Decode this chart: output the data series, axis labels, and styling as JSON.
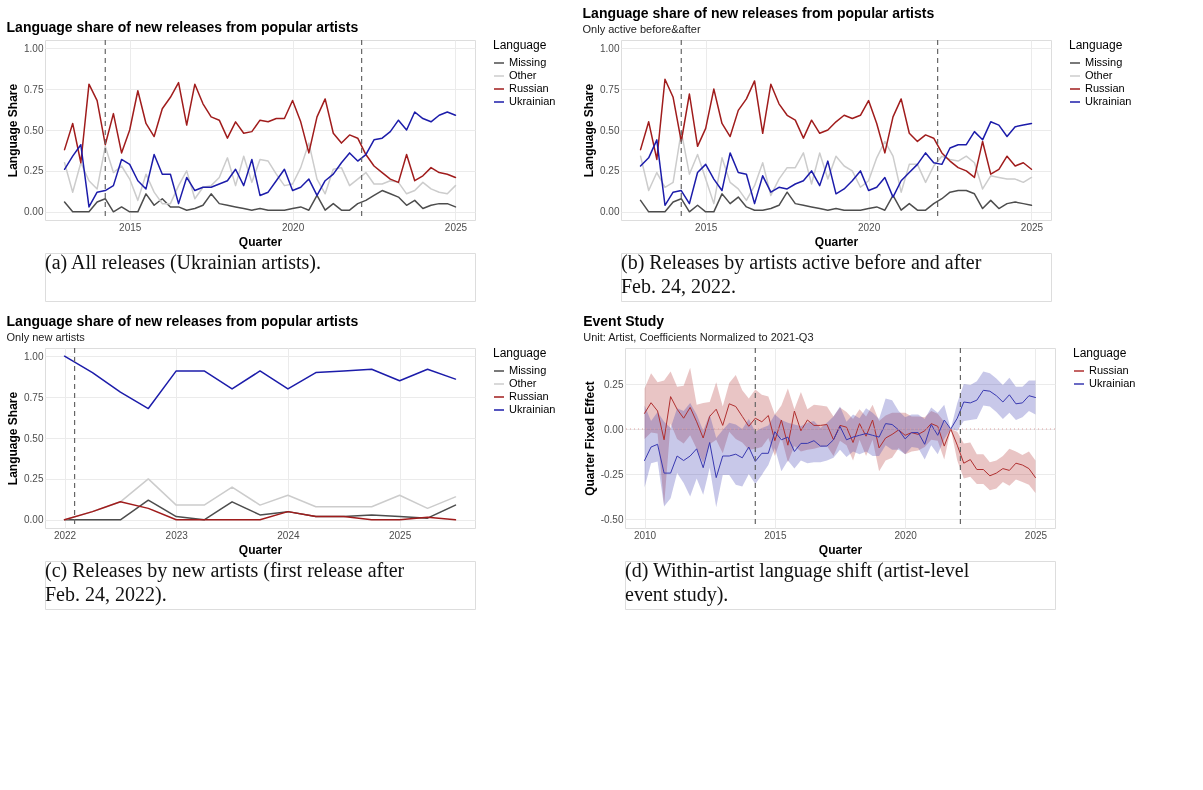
{
  "chart_data": [
    {
      "type": "line",
      "title": "Language share of new releases from popular artists",
      "xlabel": "Quarter",
      "ylabel": "Language Share",
      "legend_title": "Language",
      "legend": "right",
      "grid": true,
      "annotations": [
        "(a) All releases (Ukrainian artists)."
      ],
      "x": [
        2013,
        2013.25,
        2013.5,
        2013.75,
        2014,
        2014.25,
        2014.5,
        2014.75,
        2015,
        2015.25,
        2015.5,
        2015.75,
        2016,
        2016.25,
        2016.5,
        2016.75,
        2017,
        2017.25,
        2017.5,
        2017.75,
        2018,
        2018.25,
        2018.5,
        2018.75,
        2019,
        2019.25,
        2019.5,
        2019.75,
        2020,
        2020.25,
        2020.5,
        2020.75,
        2021,
        2021.25,
        2021.5,
        2021.75,
        2022,
        2022.25,
        2022.5,
        2022.75,
        2023,
        2023.25,
        2023.5,
        2023.75,
        2024,
        2024.25,
        2024.5,
        2024.75,
        2025
      ],
      "xlim": [
        2012.4,
        2025.6
      ],
      "xticks": [
        2015,
        2020,
        2025
      ],
      "ylim": [
        -0.05,
        1.05
      ],
      "yticks": [
        {
          "value": 0,
          "label": "0.00"
        },
        {
          "value": 0.25,
          "label": "0.25"
        },
        {
          "value": 0.5,
          "label": "0.50"
        },
        {
          "value": 0.75,
          "label": "0.75"
        },
        {
          "value": 1,
          "label": "1.00"
        }
      ],
      "ref_lines": [
        {
          "axis": "x",
          "value": 2014.25,
          "color": "#666666",
          "line_style": "dashed"
        },
        {
          "axis": "x",
          "value": 2022.12,
          "color": "#666666",
          "line_style": "dashed"
        }
      ],
      "series": [
        {
          "name": "Missing",
          "color": "#4d4d4d",
          "values": [
            0.06,
            0,
            0,
            0,
            0.06,
            0.08,
            0,
            0.03,
            0,
            0,
            0.11,
            0.04,
            0.08,
            0.03,
            0.03,
            0.01,
            0.02,
            0.04,
            0.11,
            0.05,
            0.04,
            0.03,
            0.02,
            0.01,
            0.02,
            0.01,
            0.01,
            0.01,
            0.02,
            0.03,
            0.01,
            0.1,
            0.01,
            0.05,
            0.01,
            0.01,
            0.05,
            0.07,
            0.1,
            0.13,
            0.11,
            0.09,
            0.04,
            0.07,
            0.02,
            0.04,
            0.05,
            0.05,
            0.03
          ]
        },
        {
          "name": "Other",
          "color": "#cccccc",
          "values": [
            0.3,
            0.12,
            0.3,
            0.19,
            0.14,
            0.4,
            0.24,
            0.28,
            0.2,
            0.07,
            0.23,
            0.12,
            0.05,
            0.05,
            0.16,
            0.25,
            0.08,
            0.15,
            0.16,
            0.21,
            0.33,
            0.16,
            0.34,
            0.18,
            0.32,
            0.31,
            0.23,
            0.16,
            0.17,
            0.27,
            0.42,
            0.2,
            0.11,
            0.26,
            0.27,
            0.16,
            0.2,
            0.24,
            0.17,
            0.17,
            0.19,
            0.18,
            0.11,
            0.13,
            0.18,
            0.14,
            0.12,
            0.11,
            0.16
          ]
        },
        {
          "name": "Russian",
          "color": "#a01c1c",
          "values": [
            0.38,
            0.54,
            0.3,
            0.78,
            0.68,
            0.41,
            0.6,
            0.36,
            0.5,
            0.74,
            0.54,
            0.46,
            0.63,
            0.7,
            0.79,
            0.53,
            0.78,
            0.66,
            0.58,
            0.56,
            0.45,
            0.55,
            0.48,
            0.49,
            0.56,
            0.55,
            0.57,
            0.57,
            0.68,
            0.55,
            0.36,
            0.58,
            0.69,
            0.48,
            0.42,
            0.47,
            0.45,
            0.35,
            0.28,
            0.24,
            0.2,
            0.18,
            0.35,
            0.19,
            0.22,
            0.27,
            0.24,
            0.23,
            0.21
          ]
        },
        {
          "name": "Ukrainian",
          "color": "#1c1caa",
          "values": [
            0.26,
            0.34,
            0.41,
            0.03,
            0.12,
            0.13,
            0.16,
            0.32,
            0.29,
            0.19,
            0.14,
            0.35,
            0.23,
            0.23,
            0.05,
            0.21,
            0.13,
            0.15,
            0.15,
            0.17,
            0.19,
            0.26,
            0.16,
            0.32,
            0.1,
            0.12,
            0.19,
            0.26,
            0.13,
            0.15,
            0.2,
            0.1,
            0.19,
            0.23,
            0.3,
            0.36,
            0.31,
            0.35,
            0.44,
            0.45,
            0.49,
            0.56,
            0.5,
            0.61,
            0.57,
            0.55,
            0.59,
            0.61,
            0.59
          ]
        }
      ]
    },
    {
      "type": "line",
      "title": "Language share of new releases from popular artists",
      "subtitle": "Only active before&after",
      "xlabel": "Quarter",
      "ylabel": "Language Share",
      "legend_title": "Language",
      "legend": "right",
      "grid": true,
      "annotations": [
        "(b) Releases by artists active before and after Feb. 24, 2022."
      ],
      "x": [
        2013,
        2013.25,
        2013.5,
        2013.75,
        2014,
        2014.25,
        2014.5,
        2014.75,
        2015,
        2015.25,
        2015.5,
        2015.75,
        2016,
        2016.25,
        2016.5,
        2016.75,
        2017,
        2017.25,
        2017.5,
        2017.75,
        2018,
        2018.25,
        2018.5,
        2018.75,
        2019,
        2019.25,
        2019.5,
        2019.75,
        2020,
        2020.25,
        2020.5,
        2020.75,
        2021,
        2021.25,
        2021.5,
        2021.75,
        2022,
        2022.25,
        2022.5,
        2022.75,
        2023,
        2023.25,
        2023.5,
        2023.75,
        2024,
        2024.25,
        2024.5,
        2024.75,
        2025
      ],
      "xlim": [
        2012.4,
        2025.6
      ],
      "xticks": [
        2015,
        2020,
        2025
      ],
      "ylim": [
        -0.05,
        1.05
      ],
      "yticks": [
        {
          "value": 0,
          "label": "0.00"
        },
        {
          "value": 0.25,
          "label": "0.25"
        },
        {
          "value": 0.5,
          "label": "0.50"
        },
        {
          "value": 0.75,
          "label": "0.75"
        },
        {
          "value": 1,
          "label": "1.00"
        }
      ],
      "ref_lines": [
        {
          "axis": "x",
          "value": 2014.25,
          "color": "#666666",
          "line_style": "dashed"
        },
        {
          "axis": "x",
          "value": 2022.12,
          "color": "#666666",
          "line_style": "dashed"
        }
      ],
      "series": [
        {
          "name": "Missing",
          "color": "#4d4d4d",
          "values": [
            0.07,
            0,
            0,
            0,
            0.06,
            0.08,
            0,
            0.04,
            0,
            0,
            0.11,
            0.05,
            0.09,
            0.03,
            0.01,
            0.01,
            0.02,
            0.04,
            0.12,
            0.05,
            0.04,
            0.03,
            0.02,
            0.01,
            0.02,
            0.01,
            0.01,
            0.01,
            0.02,
            0.03,
            0.01,
            0.1,
            0.01,
            0.05,
            0.01,
            0.01,
            0.05,
            0.08,
            0.12,
            0.13,
            0.13,
            0.11,
            0.02,
            0.07,
            0.02,
            0.05,
            0.06,
            0.05,
            0.04
          ]
        },
        {
          "name": "Other",
          "color": "#cccccc",
          "values": [
            0.34,
            0.13,
            0.24,
            0.15,
            0.18,
            0.49,
            0.23,
            0.35,
            0.2,
            0.05,
            0.33,
            0.18,
            0.14,
            0.07,
            0.16,
            0.3,
            0.1,
            0.2,
            0.27,
            0.27,
            0.36,
            0.17,
            0.36,
            0.2,
            0.34,
            0.28,
            0.25,
            0.15,
            0.19,
            0.33,
            0.43,
            0.34,
            0.12,
            0.29,
            0.29,
            0.18,
            0.28,
            0.34,
            0.32,
            0.31,
            0.34,
            0.3,
            0.14,
            0.22,
            0.21,
            0.2,
            0.2,
            0.18,
            0.21
          ]
        },
        {
          "name": "Russian",
          "color": "#a01c1c",
          "values": [
            0.38,
            0.55,
            0.32,
            0.81,
            0.7,
            0.43,
            0.72,
            0.4,
            0.51,
            0.75,
            0.54,
            0.46,
            0.62,
            0.69,
            0.8,
            0.48,
            0.78,
            0.66,
            0.59,
            0.56,
            0.45,
            0.56,
            0.48,
            0.5,
            0.55,
            0.59,
            0.57,
            0.59,
            0.68,
            0.54,
            0.36,
            0.58,
            0.69,
            0.48,
            0.43,
            0.47,
            0.45,
            0.36,
            0.31,
            0.27,
            0.25,
            0.21,
            0.43,
            0.23,
            0.26,
            0.34,
            0.28,
            0.3,
            0.26
          ]
        },
        {
          "name": "Ukrainian",
          "color": "#1c1caa",
          "values": [
            0.28,
            0.33,
            0.44,
            0.04,
            0.12,
            0.13,
            0.05,
            0.24,
            0.29,
            0.2,
            0.13,
            0.36,
            0.24,
            0.23,
            0.05,
            0.22,
            0.12,
            0.15,
            0.14,
            0.17,
            0.19,
            0.25,
            0.16,
            0.31,
            0.11,
            0.14,
            0.19,
            0.25,
            0.13,
            0.15,
            0.21,
            0.09,
            0.19,
            0.24,
            0.29,
            0.36,
            0.3,
            0.29,
            0.39,
            0.41,
            0.41,
            0.49,
            0.44,
            0.55,
            0.53,
            0.46,
            0.52,
            0.53,
            0.54
          ]
        }
      ]
    },
    {
      "type": "line",
      "title": "Language share of new releases from popular artists",
      "subtitle": "Only new artists",
      "xlabel": "Quarter",
      "ylabel": "Language Share",
      "legend_title": "Language",
      "legend": "right",
      "grid": true,
      "annotations": [
        "(c) Releases by new artists (first release after Feb. 24, 2022)."
      ],
      "x": [
        2022,
        2022.25,
        2022.5,
        2022.75,
        2023,
        2023.25,
        2023.5,
        2023.75,
        2024,
        2024.25,
        2024.5,
        2024.75,
        2025,
        2025.25,
        2025.5
      ],
      "xlim": [
        2021.825,
        2025.675
      ],
      "xticks": [
        2022,
        2023,
        2024,
        2025
      ],
      "ylim": [
        -0.05,
        1.05
      ],
      "yticks": [
        {
          "value": 0,
          "label": "0.00"
        },
        {
          "value": 0.25,
          "label": "0.25"
        },
        {
          "value": 0.5,
          "label": "0.50"
        },
        {
          "value": 0.75,
          "label": "0.75"
        },
        {
          "value": 1,
          "label": "1.00"
        }
      ],
      "ref_lines": [
        {
          "axis": "x",
          "value": 2022.09,
          "color": "#666666",
          "line_style": "dashed"
        }
      ],
      "series": [
        {
          "name": "Missing",
          "color": "#4d4d4d",
          "values": [
            0,
            0,
            0,
            0.12,
            0.02,
            0,
            0.11,
            0.03,
            0.05,
            0.02,
            0.02,
            0.03,
            0.02,
            0.01,
            0.09
          ]
        },
        {
          "name": "Other",
          "color": "#cccccc",
          "values": [
            0,
            0.05,
            0.11,
            0.25,
            0.09,
            0.09,
            0.2,
            0.09,
            0.15,
            0.08,
            0.08,
            0.08,
            0.15,
            0.07,
            0.14
          ]
        },
        {
          "name": "Russian",
          "color": "#a01c1c",
          "values": [
            0,
            0.05,
            0.11,
            0.07,
            0,
            0,
            0,
            0,
            0.05,
            0.02,
            0.02,
            0,
            0,
            0.015,
            0
          ]
        },
        {
          "name": "Ukrainian",
          "color": "#1c1caa",
          "values": [
            1.0,
            0.9,
            0.78,
            0.68,
            0.91,
            0.91,
            0.8,
            0.91,
            0.8,
            0.9,
            0.91,
            0.92,
            0.85,
            0.92,
            0.86
          ]
        }
      ]
    },
    {
      "type": "line",
      "title": "Event Study",
      "subtitle": "Unit: Artist, Coefficients Normalized to 2021-Q3",
      "xlabel": "Quarter",
      "ylabel": "Quarter Fixed Effect",
      "legend_title": "Language",
      "legend": "right",
      "grid": true,
      "annotations": [
        "(d) Within-artist language shift (artist-level event study)."
      ],
      "x": [
        2010,
        2010.25,
        2010.5,
        2010.75,
        2011,
        2011.25,
        2011.5,
        2011.75,
        2012,
        2012.25,
        2012.5,
        2012.75,
        2013,
        2013.25,
        2013.5,
        2013.75,
        2014,
        2014.25,
        2014.5,
        2014.75,
        2015,
        2015.25,
        2015.5,
        2015.75,
        2016,
        2016.25,
        2016.5,
        2016.75,
        2017,
        2017.25,
        2017.5,
        2017.75,
        2018,
        2018.25,
        2018.5,
        2018.75,
        2019,
        2019.25,
        2019.5,
        2019.75,
        2020,
        2020.25,
        2020.5,
        2020.75,
        2021,
        2021.25,
        2021.5,
        2021.75,
        2022,
        2022.25,
        2022.5,
        2022.75,
        2023,
        2023.25,
        2023.5,
        2023.75,
        2024,
        2024.25,
        2024.5,
        2024.75,
        2025
      ],
      "xlim": [
        2009.25,
        2025.75
      ],
      "xticks": [
        2010,
        2015,
        2020,
        2025
      ],
      "ylim": [
        -0.55,
        0.45
      ],
      "yticks": [
        {
          "value": -0.5,
          "label": "-0.50"
        },
        {
          "value": -0.25,
          "label": "-0.25"
        },
        {
          "value": 0,
          "label": "0.00"
        },
        {
          "value": 0.25,
          "label": "0.25"
        }
      ],
      "ref_lines": [
        {
          "axis": "x",
          "value": 2014.25,
          "color": "#666666",
          "line_style": "dashed"
        },
        {
          "axis": "x",
          "value": 2022.12,
          "color": "#666666",
          "line_style": "dashed"
        },
        {
          "axis": "y",
          "value": 0,
          "color": "#e0a0a0",
          "line_style": "dotted"
        }
      ],
      "series": [
        {
          "name": "Russian",
          "color": "#b03030",
          "values": [
            0.087,
            0.146,
            0.1,
            -0.06,
            0.18,
            0.11,
            0.06,
            0.12,
            0.04,
            -0.05,
            0.07,
            0.11,
            0.02,
            0.14,
            0.125,
            0.07,
            0.015,
            0.06,
            0.04,
            0.075,
            -0.065,
            0.05,
            -0.09,
            0.1,
            -0.01,
            0.05,
            0.02,
            0.02,
            0.025,
            -0.06,
            0.02,
            0.01,
            -0.075,
            0.03,
            -0.04,
            0.05,
            -0.105,
            -0.05,
            -0.03,
            -0.005,
            -0.035,
            -0.02,
            -0.03,
            -0.01,
            0.03,
            0.015,
            -0.095,
            0,
            -0.09,
            -0.19,
            -0.17,
            -0.225,
            -0.225,
            -0.26,
            -0.245,
            -0.22,
            -0.23,
            -0.19,
            -0.2,
            -0.22,
            -0.27
          ],
          "upper": [
            0.225,
            0.31,
            0.26,
            0.27,
            0.32,
            0.235,
            0.24,
            0.34,
            0.135,
            0.145,
            0.15,
            0.26,
            0.125,
            0.255,
            0.3,
            0.215,
            0.17,
            0.22,
            0.19,
            0.18,
            0.08,
            0.13,
            0.225,
            0.11,
            0.205,
            0.11,
            0.135,
            0.13,
            0.125,
            0.07,
            0.12,
            0.095,
            0.055,
            0.11,
            0.07,
            0.135,
            0.045,
            0.075,
            0.09,
            0.09,
            0.09,
            0.07,
            0.07,
            0.065,
            0.1,
            0.085,
            0.04,
            0,
            -0.015,
            -0.08,
            -0.075,
            -0.14,
            -0.14,
            -0.185,
            -0.175,
            -0.15,
            -0.11,
            -0.125,
            -0.145,
            -0.125,
            -0.175
          ],
          "lower": [
            -0.055,
            -0.02,
            -0.025,
            -0.425,
            0.03,
            -0.055,
            -0.08,
            -0.035,
            -0.11,
            -0.19,
            -0.085,
            -0.06,
            -0.135,
            -0.015,
            -0.055,
            -0.075,
            -0.115,
            -0.11,
            -0.1,
            -0.05,
            -0.15,
            -0.045,
            -0.185,
            -0.095,
            -0.125,
            -0.115,
            -0.11,
            -0.1,
            -0.095,
            -0.15,
            -0.065,
            -0.09,
            -0.175,
            -0.06,
            -0.15,
            -0.06,
            -0.235,
            -0.175,
            -0.16,
            -0.105,
            -0.14,
            -0.125,
            -0.12,
            -0.1,
            -0.06,
            -0.065,
            -0.17,
            0,
            -0.175,
            -0.275,
            -0.265,
            -0.305,
            -0.305,
            -0.34,
            -0.33,
            -0.295,
            -0.315,
            -0.28,
            -0.295,
            -0.31,
            -0.355
          ]
        },
        {
          "name": "Ukrainian",
          "color": "#3838b0",
          "values": [
            -0.175,
            -0.1,
            -0.085,
            -0.245,
            -0.245,
            -0.15,
            -0.175,
            -0.15,
            -0.11,
            -0.215,
            -0.075,
            -0.27,
            -0.15,
            -0.15,
            -0.14,
            -0.16,
            -0.1,
            -0.18,
            -0.135,
            -0.135,
            -0.015,
            -0.06,
            -0.045,
            -0.125,
            -0.08,
            -0.08,
            -0.065,
            -0.095,
            -0.095,
            -0.06,
            0.015,
            -0.06,
            -0.045,
            -0.035,
            -0.025,
            -0.035,
            -0.045,
            0.03,
            0.025,
            -0.005,
            -0.055,
            -0.02,
            -0.02,
            -0.085,
            0.025,
            -0.035,
            0.05,
            0,
            0.06,
            0.15,
            0.145,
            0.16,
            0.215,
            0.21,
            0.185,
            0.15,
            0.19,
            0.14,
            0.145,
            0.185,
            0.175
          ],
          "upper": [
            0.13,
            0.045,
            0.095,
            0.04,
            0.005,
            0.115,
            0.1,
            0.145,
            0.08,
            -0.01,
            0.08,
            -0.05,
            -0.005,
            0.035,
            0.025,
            0,
            0.055,
            -0.015,
            0.005,
            0.02,
            0.08,
            0.05,
            0.035,
            0.025,
            0.015,
            0.035,
            0.045,
            0.005,
            0.035,
            0.07,
            0.125,
            0.04,
            0.08,
            0.06,
            0.115,
            0.09,
            0.055,
            0.17,
            0.16,
            0.1,
            0.065,
            0.08,
            0.08,
            0.055,
            0.12,
            0.09,
            0.135,
            0,
            0.145,
            0.25,
            0.245,
            0.265,
            0.32,
            0.31,
            0.28,
            0.245,
            0.285,
            0.235,
            0.235,
            0.27,
            0.27
          ],
          "lower": [
            -0.325,
            -0.19,
            -0.18,
            -0.43,
            -0.385,
            -0.245,
            -0.3,
            -0.375,
            -0.275,
            -0.365,
            -0.215,
            -0.435,
            -0.255,
            -0.255,
            -0.31,
            -0.32,
            -0.25,
            -0.305,
            -0.255,
            -0.2,
            -0.105,
            -0.235,
            -0.175,
            -0.22,
            -0.175,
            -0.19,
            -0.185,
            -0.185,
            -0.175,
            -0.16,
            -0.115,
            -0.155,
            -0.125,
            -0.14,
            -0.125,
            -0.15,
            -0.15,
            -0.09,
            -0.115,
            -0.115,
            -0.14,
            -0.1,
            -0.105,
            -0.17,
            -0.09,
            -0.14,
            -0.055,
            0,
            -0.01,
            0.045,
            0.05,
            0.055,
            0.13,
            0.125,
            0.095,
            0.055,
            0.09,
            0.05,
            0.065,
            0.1,
            0.08
          ]
        }
      ]
    }
  ]
}
